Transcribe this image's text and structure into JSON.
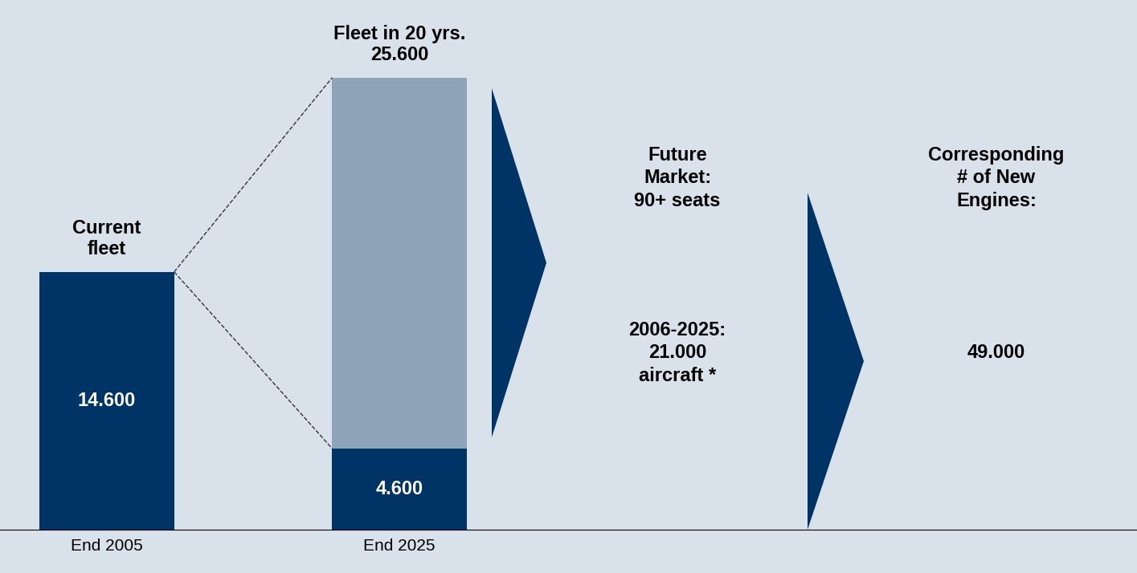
{
  "chart_data": {
    "type": "bar",
    "stacked": true,
    "categories": [
      "End 2005",
      "End 2025"
    ],
    "series": [
      {
        "color": "#003366",
        "values": [
          14600,
          4600
        ],
        "value_labels": [
          "14.600",
          "4.600"
        ],
        "data_labels": true
      },
      {
        "color": "#8ca3b8",
        "values": [
          null,
          21000
        ],
        "data_labels": false
      }
    ],
    "ylim": [
      0,
      30000
    ],
    "tick_labels": "x",
    "annotations": [
      {
        "category": "End 2005",
        "text": "Current\nfleet"
      },
      {
        "category": "End 2025",
        "text": "Fleet in 20 yrs.",
        "value": 25600,
        "value_label": "25.600"
      }
    ],
    "steps": [
      {
        "heading": "Future\nMarket:\n90+ seats",
        "body": "2006-2025:\n21.000\naircraft *"
      },
      {
        "heading": "Corresponding\n# of New\nEngines:",
        "body": "49.000"
      }
    ]
  }
}
